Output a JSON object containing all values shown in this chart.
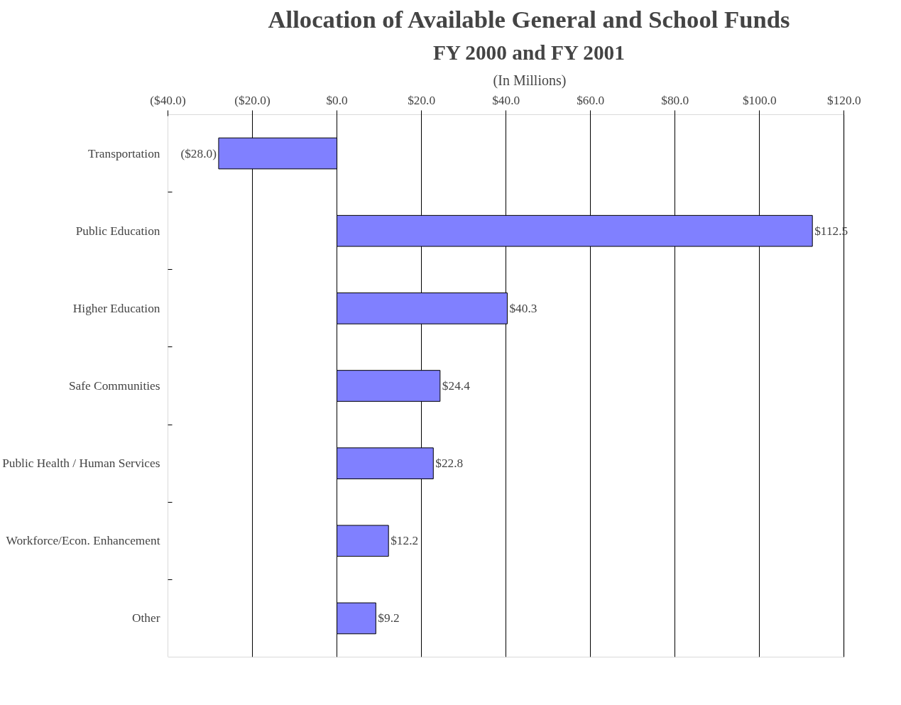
{
  "chart_data": {
    "type": "bar",
    "orientation": "horizontal",
    "title": "Allocation of Available General and School Funds",
    "subtitle": "FY 2000 and FY 2001",
    "annotations": [
      "(In Millions)"
    ],
    "categories": [
      "Transportation",
      "Public Education",
      "Higher Education",
      "Safe Communities",
      "Public Health / Human Services",
      "Workforce/Econ. Enhancement",
      "Other"
    ],
    "values": [
      -28.0,
      112.5,
      40.3,
      24.4,
      22.8,
      12.2,
      9.2
    ],
    "value_labels": [
      "($28.0)",
      "$112.5",
      "$40.3",
      "$24.4",
      "$22.8",
      "$12.2",
      "$9.2"
    ],
    "color": "#8080ff",
    "xlim": [
      -40,
      120
    ],
    "xticks": [
      {
        "value": -40,
        "label": "($40.0)"
      },
      {
        "value": -20,
        "label": "($20.0)"
      },
      {
        "value": 0,
        "label": "$0.0"
      },
      {
        "value": 20,
        "label": "$20.0"
      },
      {
        "value": 40,
        "label": "$40.0"
      },
      {
        "value": 60,
        "label": "$60.0"
      },
      {
        "value": 80,
        "label": "$80.0"
      },
      {
        "value": 100,
        "label": "$100.0"
      },
      {
        "value": 120,
        "label": "$120.0"
      }
    ],
    "grid": "x"
  }
}
